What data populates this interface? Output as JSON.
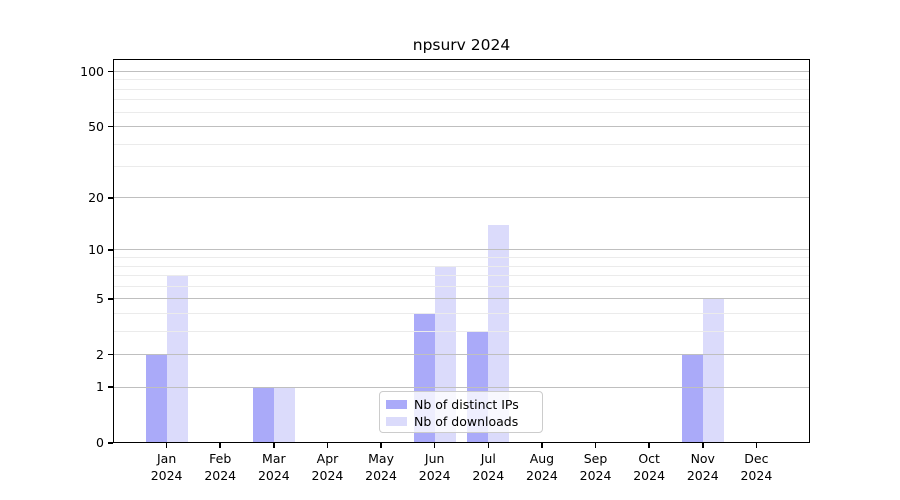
{
  "window": {
    "title": "npsurv 2024"
  },
  "chart_data": {
    "type": "bar",
    "title": "npsurv 2024",
    "categories": [
      "Jan",
      "Feb",
      "Mar",
      "Apr",
      "May",
      "Jun",
      "Jul",
      "Aug",
      "Sep",
      "Oct",
      "Nov",
      "Dec"
    ],
    "year": "2024",
    "series": [
      {
        "name": "Nb of distinct IPs",
        "color": "#aaaaf9",
        "values": [
          2,
          0,
          1,
          0,
          0,
          4,
          3,
          0,
          0,
          0,
          2,
          0
        ]
      },
      {
        "name": "Nb of downloads",
        "color": "#dbdbfb",
        "values": [
          7,
          0,
          1,
          0,
          0,
          8,
          14,
          0,
          0,
          0,
          5,
          0
        ]
      }
    ],
    "xlabel": "",
    "ylabel": "",
    "yscale": "log1p",
    "ylim": [
      0,
      117
    ],
    "yticks_major": [
      0,
      1,
      2,
      5,
      10,
      20,
      50,
      100
    ],
    "yticks_minor": [
      3,
      4,
      6,
      7,
      8,
      9,
      30,
      40,
      60,
      70,
      80,
      90
    ],
    "grid": "horizontal major+minor, drawn above bars",
    "legend_position": "lower center inside axes"
  },
  "colors": {
    "grid_major": "#bfbfbf",
    "grid_minor": "#ebebeb",
    "axis": "#000000",
    "legend_border": "#cccccc"
  }
}
